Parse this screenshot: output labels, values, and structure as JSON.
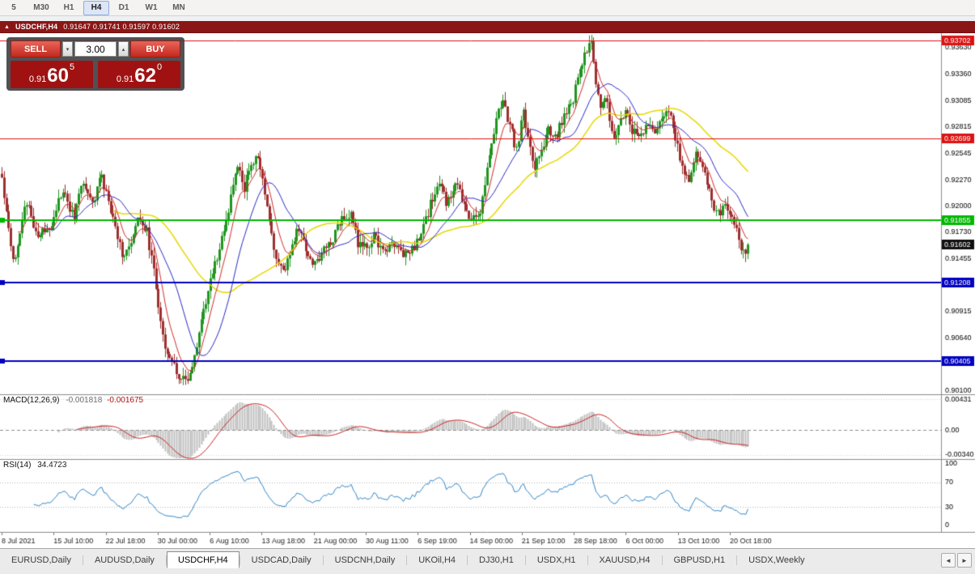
{
  "toolbar": {
    "timeframes": [
      "5",
      "M30",
      "H1",
      "H4",
      "D1",
      "W1",
      "MN"
    ],
    "active": "H4"
  },
  "window": {
    "title": {
      "collapse_icon": "▲",
      "symbol": "USDCHF,H4",
      "quotes": "0.91647 0.91741 0.91597 0.91602"
    },
    "one_click": {
      "sell": {
        "label": "SELL",
        "price_prefix": "0.91",
        "price_big": "60",
        "price_sup": "5"
      },
      "buy": {
        "label": "BUY",
        "price_prefix": "0.91",
        "price_big": "62",
        "price_sup": "0"
      },
      "volume": "3.00",
      "spin_down_icon": "▾",
      "spin_up_icon": "▴"
    }
  },
  "chart_data": [
    {
      "type": "candlestick",
      "symbol": "USDCHF",
      "timeframe": "H4",
      "ohlc_display": {
        "open": 0.91647,
        "high": 0.91741,
        "low": 0.91597,
        "close": 0.91602
      },
      "current_price": 0.91602,
      "ylim": [
        0.9006,
        0.9378
      ],
      "bar_count": 330,
      "colors": {
        "up": "#209520",
        "down": "#9e2f2f",
        "background": "#ffffff"
      },
      "yticks": [
        0.9363,
        0.9336,
        0.93085,
        0.92815,
        0.92545,
        0.9227,
        0.92,
        0.9173,
        0.91455,
        0.9118,
        0.90915,
        0.9064,
        0.9037,
        0.901
      ],
      "hlines": [
        {
          "price": 0.93702,
          "color": "#dd1111",
          "width": 1,
          "handle": false
        },
        {
          "price": 0.92699,
          "color": "#dd1111",
          "width": 1,
          "handle": false
        },
        {
          "price": 0.91855,
          "color": "#00b800",
          "width": 2,
          "handle": true
        },
        {
          "price": 0.91208,
          "color": "#0000c0",
          "width": 2,
          "handle": true
        },
        {
          "price": 0.90405,
          "color": "#0000c0",
          "width": 2,
          "handle": true
        }
      ],
      "moving_averages": [
        {
          "period": 50,
          "type": "sma",
          "color": "#e6d800",
          "width": 1.5
        },
        {
          "period": 20,
          "type": "sma",
          "color": "#2929c8",
          "width": 1
        },
        {
          "period": 8,
          "type": "ema",
          "color": "#d42a2a",
          "width": 1
        }
      ],
      "price_anchors": [
        [
          0.0,
          0.9228
        ],
        [
          0.016,
          0.9142
        ],
        [
          0.032,
          0.9205
        ],
        [
          0.049,
          0.9168
        ],
        [
          0.065,
          0.918
        ],
        [
          0.081,
          0.9215
        ],
        [
          0.097,
          0.9188
        ],
        [
          0.108,
          0.9228
        ],
        [
          0.121,
          0.92
        ],
        [
          0.132,
          0.9232
        ],
        [
          0.146,
          0.9195
        ],
        [
          0.162,
          0.915
        ],
        [
          0.173,
          0.9158
        ],
        [
          0.184,
          0.919
        ],
        [
          0.195,
          0.9172
        ],
        [
          0.206,
          0.912
        ],
        [
          0.216,
          0.9065
        ],
        [
          0.227,
          0.904
        ],
        [
          0.24,
          0.9022
        ],
        [
          0.251,
          0.9018
        ],
        [
          0.262,
          0.906
        ],
        [
          0.273,
          0.91
        ],
        [
          0.284,
          0.9135
        ],
        [
          0.294,
          0.9162
        ],
        [
          0.305,
          0.92
        ],
        [
          0.316,
          0.9242
        ],
        [
          0.325,
          0.9218
        ],
        [
          0.335,
          0.9245
        ],
        [
          0.344,
          0.925
        ],
        [
          0.355,
          0.92
        ],
        [
          0.366,
          0.915
        ],
        [
          0.377,
          0.913
        ],
        [
          0.387,
          0.9155
        ],
        [
          0.398,
          0.9178
        ],
        [
          0.409,
          0.915
        ],
        [
          0.42,
          0.914
        ],
        [
          0.431,
          0.9155
        ],
        [
          0.444,
          0.9168
        ],
        [
          0.455,
          0.9188
        ],
        [
          0.468,
          0.919
        ],
        [
          0.478,
          0.916
        ],
        [
          0.489,
          0.9155
        ],
        [
          0.5,
          0.917
        ],
        [
          0.511,
          0.915
        ],
        [
          0.522,
          0.9162
        ],
        [
          0.532,
          0.9158
        ],
        [
          0.543,
          0.9148
        ],
        [
          0.554,
          0.916
        ],
        [
          0.565,
          0.9175
        ],
        [
          0.576,
          0.9205
        ],
        [
          0.587,
          0.9225
        ],
        [
          0.597,
          0.92
        ],
        [
          0.608,
          0.9228
        ],
        [
          0.619,
          0.92
        ],
        [
          0.63,
          0.9185
        ],
        [
          0.641,
          0.9195
        ],
        [
          0.651,
          0.924
        ],
        [
          0.662,
          0.929
        ],
        [
          0.671,
          0.931
        ],
        [
          0.682,
          0.928
        ],
        [
          0.69,
          0.9256
        ],
        [
          0.698,
          0.9298
        ],
        [
          0.706,
          0.927
        ],
        [
          0.714,
          0.924
        ],
        [
          0.723,
          0.9258
        ],
        [
          0.732,
          0.928
        ],
        [
          0.74,
          0.9265
        ],
        [
          0.749,
          0.9285
        ],
        [
          0.758,
          0.9296
        ],
        [
          0.766,
          0.931
        ],
        [
          0.775,
          0.934
        ],
        [
          0.784,
          0.936
        ],
        [
          0.79,
          0.9368
        ],
        [
          0.796,
          0.933
        ],
        [
          0.803,
          0.93
        ],
        [
          0.81,
          0.9315
        ],
        [
          0.816,
          0.9285
        ],
        [
          0.823,
          0.927
        ],
        [
          0.829,
          0.929
        ],
        [
          0.836,
          0.93
        ],
        [
          0.844,
          0.9278
        ],
        [
          0.853,
          0.927
        ],
        [
          0.861,
          0.928
        ],
        [
          0.87,
          0.9282
        ],
        [
          0.879,
          0.9278
        ],
        [
          0.887,
          0.9295
        ],
        [
          0.896,
          0.929
        ],
        [
          0.905,
          0.9265
        ],
        [
          0.913,
          0.9235
        ],
        [
          0.922,
          0.9225
        ],
        [
          0.929,
          0.9255
        ],
        [
          0.935,
          0.925
        ],
        [
          0.944,
          0.923
        ],
        [
          0.952,
          0.92
        ],
        [
          0.961,
          0.919
        ],
        [
          0.97,
          0.9205
        ],
        [
          0.978,
          0.9185
        ],
        [
          0.987,
          0.917
        ],
        [
          0.994,
          0.915
        ],
        [
          1.0,
          0.91602
        ]
      ]
    },
    {
      "type": "area",
      "name": "MACD(12,26,9)",
      "value_main": "-0.001818",
      "value_signal": "-0.001675",
      "ylim": [
        -0.004,
        0.005
      ],
      "yticks": [
        {
          "v": 0.00431,
          "label": "0.00431"
        },
        {
          "v": 0,
          "label": "0.00"
        },
        {
          "v": -0.0034,
          "label": "-0.00340"
        }
      ],
      "colors": {
        "histogram": "#bfbfbf",
        "signal": "#cc2222"
      }
    },
    {
      "type": "line",
      "name": "RSI(14)",
      "value": "34.4723",
      "ylim": [
        0,
        100
      ],
      "levels": [
        70,
        30
      ],
      "yticks": [
        {
          "v": 100,
          "label": "100"
        },
        {
          "v": 70,
          "label": "70"
        },
        {
          "v": 30,
          "label": "30"
        },
        {
          "v": 0,
          "label": "0"
        }
      ],
      "color": "#2e86c8"
    }
  ],
  "time_axis": {
    "labels": [
      "8 Jul 2021",
      "15 Jul 10:00",
      "22 Jul 18:00",
      "30 Jul 00:00",
      "6 Aug 10:00",
      "13 Aug 18:00",
      "21 Aug 00:00",
      "30 Aug 11:00",
      "6 Sep 19:00",
      "14 Sep 00:00",
      "21 Sep 10:00",
      "28 Sep 18:00",
      "6 Oct 00:00",
      "13 Oct 10:00",
      "20 Oct 18:00"
    ]
  },
  "tabs": {
    "items": [
      "EURUSD,Daily",
      "AUDUSD,Daily",
      "USDCHF,H4",
      "USDCAD,Daily",
      "USDCNH,Daily",
      "UKOil,H4",
      "DJ30,H1",
      "USDX,H1",
      "XAUUSD,H4",
      "GBPUSD,H1",
      "USDX,Weekly"
    ],
    "active_index": 2,
    "scroll_left": "◄",
    "scroll_right": "►"
  }
}
